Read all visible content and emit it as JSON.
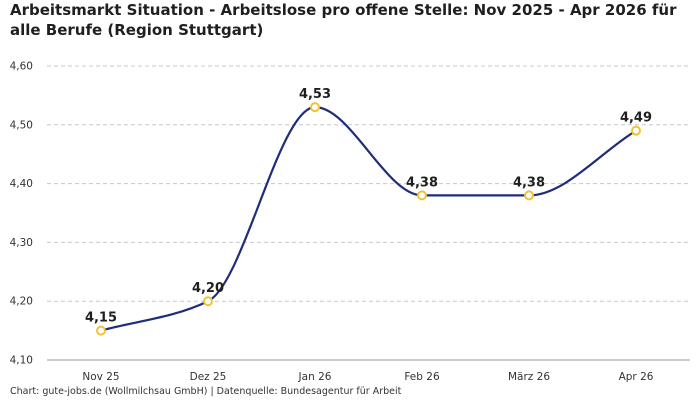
{
  "title": "Arbeitsmarkt Situation - Arbeitslose pro offene Stelle: Nov 2025 - Apr 2026 für alle Berufe (Region Stuttgart)",
  "footer": "Chart: gute-jobs.de (Wollmilchsau GmbH) | Datenquelle: Bundesagentur für Arbeit",
  "colors": {
    "line": "#1f2d7a",
    "marker": "#f2c230",
    "grid": "#c8c8c8"
  },
  "chart_data": {
    "type": "line",
    "categories": [
      "Nov 25",
      "Dez 25",
      "Jan 26",
      "Feb 26",
      "März 26",
      "Apr 26"
    ],
    "values": [
      4.15,
      4.2,
      4.53,
      4.38,
      4.38,
      4.49
    ],
    "data_labels": [
      "4,15",
      "4,20",
      "4,53",
      "4,38",
      "4,38",
      "4,49"
    ],
    "y_ticks": [
      4.1,
      4.2,
      4.3,
      4.4,
      4.5,
      4.6
    ],
    "y_tick_labels": [
      "4,10",
      "4,20",
      "4,30",
      "4,40",
      "4,50",
      "4,60"
    ],
    "ylim": [
      4.1,
      4.6
    ],
    "grid": true,
    "legend": false,
    "smooth": true
  }
}
